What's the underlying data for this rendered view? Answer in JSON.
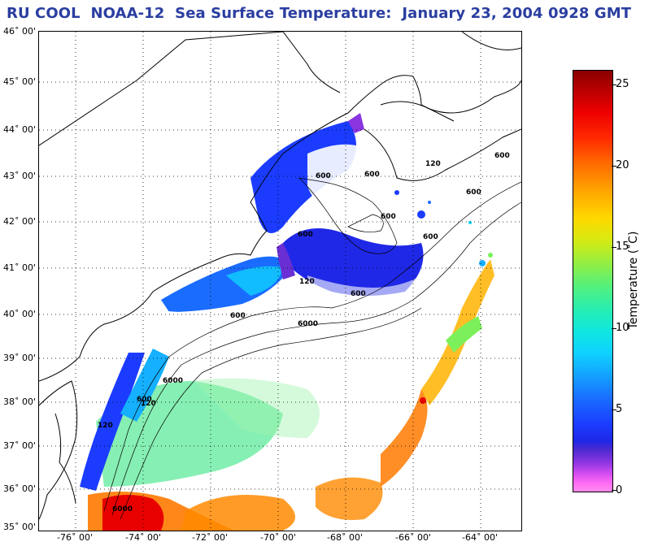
{
  "title": "RU COOL  NOAA-12  Sea Surface Temperature:  January 23, 2004 0928 GMT",
  "map": {
    "lat_labels": [
      "46˚ 00'",
      "45˚ 00'",
      "44˚ 00'",
      "43˚ 00'",
      "42˚ 00'",
      "41˚ 00'",
      "40˚ 00'",
      "39˚ 00'",
      "38˚ 00'",
      "37˚ 00'",
      "36˚ 00'",
      "35˚ 00'"
    ],
    "lon_labels": [
      "-76˚ 00'",
      "-74˚ 00'",
      "-72˚ 00'",
      "-70˚ 00'",
      "-68˚ 00'",
      "-66˚ 00'",
      "-64˚ 00'"
    ],
    "bathymetry_labels": [
      "600",
      "600",
      "600",
      "120",
      "600",
      "600",
      "600",
      "120",
      "600",
      "600",
      "6000",
      "6000",
      "600",
      "120",
      "6000",
      "600",
      "120"
    ]
  },
  "colorbar": {
    "label": "Temperature (˚C)",
    "ticks": [
      "25",
      "20",
      "15",
      "10",
      "5",
      "0"
    ],
    "colors": {
      "min": "#ff8cf0",
      "low": "#1b3cff",
      "mid": "#10e6e0",
      "high": "#ffd800",
      "max": "#8a0000"
    }
  }
}
